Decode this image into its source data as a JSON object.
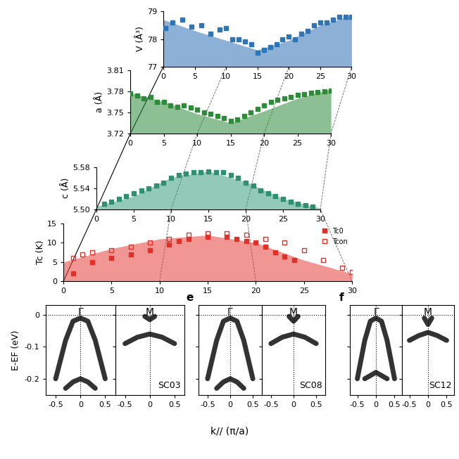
{
  "chart_data": [
    {
      "type": "scatter",
      "ylabel": "V (Å³)",
      "xlim": [
        0,
        30
      ],
      "xticks": [
        0,
        5,
        10,
        15,
        20,
        25,
        30
      ],
      "ylim": [
        77,
        79
      ],
      "yticks": [
        77,
        78,
        79
      ],
      "series": [
        {
          "type": "area",
          "color": "#2f6fb5",
          "x": [
            0,
            5,
            10,
            15,
            20,
            25,
            30
          ],
          "values": [
            78.7,
            78.3,
            77.95,
            77.6,
            77.95,
            78.5,
            78.85
          ]
        },
        {
          "type": "scatter",
          "color": "#2e75b6",
          "marker": "square",
          "x": [
            0.3,
            1.5,
            3,
            4.5,
            6,
            7.5,
            9,
            10,
            11,
            12,
            13,
            14,
            15,
            16,
            17,
            18,
            19,
            20,
            21,
            22,
            23,
            24,
            25,
            26,
            27,
            28,
            29,
            30
          ],
          "values": [
            78.4,
            78.6,
            78.7,
            78.45,
            78.5,
            78.2,
            78.35,
            78.4,
            78.0,
            78.0,
            77.9,
            77.8,
            77.5,
            77.6,
            77.7,
            77.8,
            78.0,
            78.1,
            78.0,
            78.2,
            78.3,
            78.5,
            78.6,
            78.6,
            78.7,
            78.8,
            78.8,
            78.8
          ]
        }
      ]
    },
    {
      "type": "scatter",
      "ylabel": "a (Å)",
      "xlim": [
        0,
        30
      ],
      "xticks": [
        0,
        5,
        10,
        15,
        20,
        25,
        30
      ],
      "ylim": [
        3.72,
        3.81
      ],
      "yticks": [
        3.72,
        3.75,
        3.78,
        3.81
      ],
      "series": [
        {
          "type": "area",
          "color": "#2e8b3a",
          "x": [
            0,
            5,
            10,
            15,
            20,
            25,
            30
          ],
          "values": [
            3.778,
            3.765,
            3.748,
            3.735,
            3.752,
            3.77,
            3.783
          ]
        },
        {
          "type": "scatter",
          "color": "#2e8b3a",
          "marker": "square",
          "x": [
            0,
            1,
            2,
            3,
            4,
            5,
            6,
            7,
            8,
            9,
            10,
            11,
            12,
            13,
            14,
            15,
            16,
            17,
            18,
            19,
            20,
            21,
            22,
            23,
            24,
            25,
            26,
            27,
            28,
            29,
            30
          ],
          "values": [
            3.777,
            3.774,
            3.77,
            3.772,
            3.765,
            3.765,
            3.76,
            3.758,
            3.76,
            3.757,
            3.754,
            3.75,
            3.748,
            3.745,
            3.742,
            3.738,
            3.74,
            3.745,
            3.75,
            3.755,
            3.76,
            3.765,
            3.768,
            3.77,
            3.772,
            3.775,
            3.776,
            3.778,
            3.779,
            3.78,
            3.781
          ]
        }
      ]
    },
    {
      "type": "scatter",
      "ylabel": "c (Å)",
      "xlim": [
        0,
        30
      ],
      "xticks": [
        0,
        5,
        10,
        15,
        20,
        25,
        30
      ],
      "ylim": [
        5.5,
        5.58
      ],
      "yticks": [
        {
          "value": 5.5,
          "label": "5.50"
        },
        5.54,
        5.58
      ],
      "series": [
        {
          "type": "area",
          "color": "#3a9e7e",
          "x": [
            0,
            5,
            10,
            15,
            20,
            25,
            30
          ],
          "values": [
            5.505,
            5.525,
            5.56,
            5.572,
            5.552,
            5.52,
            5.502
          ]
        },
        {
          "type": "scatter",
          "color": "#2f8f70",
          "marker": "square",
          "x": [
            1,
            2,
            3,
            4,
            5,
            6,
            7,
            8,
            9,
            10,
            11,
            12,
            13,
            14,
            15,
            16,
            17,
            18,
            19,
            20,
            21,
            22,
            23,
            24,
            25,
            26,
            27,
            28,
            29
          ],
          "values": [
            5.51,
            5.515,
            5.52,
            5.525,
            5.53,
            5.535,
            5.54,
            5.545,
            5.55,
            5.56,
            5.565,
            5.568,
            5.57,
            5.57,
            5.572,
            5.57,
            5.57,
            5.565,
            5.56,
            5.55,
            5.545,
            5.535,
            5.53,
            5.525,
            5.52,
            5.515,
            5.51,
            5.508,
            5.505
          ]
        }
      ]
    },
    {
      "type": "scatter",
      "ylabel": "Tc (K)",
      "xlim": [
        0,
        30
      ],
      "xticks": [
        0,
        5,
        10,
        15,
        20,
        25,
        30
      ],
      "ylim": [
        0,
        15
      ],
      "yticks": [
        0,
        5,
        10,
        15
      ],
      "legend": "upper right",
      "series": [
        {
          "type": "area",
          "color": "#e8403a",
          "x": [
            0,
            5,
            10,
            15,
            20,
            25,
            30
          ],
          "values": [
            5,
            8.5,
            11,
            12,
            10,
            5.5,
            2
          ]
        },
        {
          "type": "scatter",
          "name": "Tc0",
          "color": "#e0302a",
          "marker": "square",
          "x": [
            1,
            3,
            5,
            7,
            9,
            11,
            12,
            13,
            15,
            17,
            18,
            19,
            20,
            21,
            22,
            23,
            24
          ],
          "values": [
            2,
            5,
            6,
            7,
            8,
            9.5,
            10.5,
            11,
            11.5,
            11.5,
            11,
            10.5,
            10,
            9,
            7.5,
            6.5,
            5.5
          ]
        },
        {
          "type": "scatter",
          "name": "Tcon",
          "color": "#e0302a",
          "marker": "open-square",
          "x": [
            1,
            2,
            3,
            5,
            7,
            9,
            11,
            13,
            15,
            17,
            19,
            21,
            23,
            25,
            27,
            29,
            30
          ],
          "values": [
            6,
            7,
            7.5,
            8,
            9,
            10,
            11,
            12,
            12.5,
            12.5,
            12,
            11,
            10,
            8,
            5.5,
            3.5,
            2.5
          ]
        }
      ]
    },
    {
      "type": "arpes",
      "label": null,
      "sample": "SC03",
      "ylabel": "E-EF (eV)",
      "xlabel": "k// (π/a)",
      "xlim": [
        -0.7,
        0.7
      ],
      "xticks": [
        -0.5,
        0,
        0.5
      ],
      "ylim": [
        -0.25,
        0.03
      ],
      "yticks": [
        0,
        -0.1,
        -0.2
      ],
      "panels": [
        {
          "title": "Γ",
          "bands": [
            {
              "x": [
                -0.5,
                -0.3,
                -0.15,
                0,
                0.15,
                0.3,
                0.5
              ],
              "values": [
                -0.2,
                -0.08,
                -0.02,
                -0.01,
                -0.02,
                -0.08,
                -0.2
              ]
            },
            {
              "x": [
                -0.3,
                -0.15,
                0,
                0.15,
                0.3
              ],
              "values": [
                -0.23,
                -0.21,
                -0.2,
                -0.21,
                -0.23
              ]
            }
          ]
        },
        {
          "title": "M",
          "bands": [
            {
              "x": [
                -0.5,
                -0.25,
                0,
                0.25,
                0.5
              ],
              "values": [
                -0.09,
                -0.07,
                -0.06,
                -0.07,
                -0.09
              ]
            },
            {
              "x": [
                -0.1,
                0,
                0.1
              ],
              "values": [
                -0.005,
                -0.015,
                -0.005
              ]
            }
          ]
        }
      ]
    },
    {
      "type": "arpes",
      "label": "e",
      "sample": "SC08",
      "ylabel": null,
      "xlabel": null,
      "xlim": [
        -0.7,
        0.7
      ],
      "xticks": [
        -0.5,
        0,
        0.5
      ],
      "ylim": [
        -0.25,
        0.03
      ],
      "yticks": [
        0,
        -0.1,
        -0.2
      ],
      "panels": [
        {
          "title": "Γ",
          "bands": [
            {
              "x": [
                -0.5,
                -0.3,
                -0.15,
                0,
                0.15,
                0.3,
                0.5
              ],
              "values": [
                -0.2,
                -0.08,
                -0.02,
                -0.01,
                -0.02,
                -0.08,
                -0.2
              ]
            },
            {
              "x": [
                -0.3,
                -0.15,
                0,
                0.15,
                0.3
              ],
              "values": [
                -0.23,
                -0.21,
                -0.2,
                -0.21,
                -0.23
              ]
            }
          ]
        },
        {
          "title": "M",
          "bands": [
            {
              "x": [
                -0.5,
                -0.25,
                0,
                0.25,
                0.5
              ],
              "values": [
                -0.09,
                -0.07,
                -0.06,
                -0.07,
                -0.09
              ]
            },
            {
              "x": [
                -0.1,
                0,
                0.1
              ],
              "values": [
                -0.005,
                -0.02,
                -0.005
              ]
            }
          ]
        }
      ]
    },
    {
      "type": "arpes",
      "label": "f",
      "sample": "SC12",
      "ylabel": null,
      "xlabel": null,
      "xlim": [
        -0.7,
        0.7
      ],
      "xticks": [
        -0.5,
        0,
        0.5
      ],
      "ylim": [
        -0.25,
        0.03
      ],
      "yticks": [
        0,
        -0.1,
        -0.2
      ],
      "panels": [
        {
          "title": "Γ",
          "bands": [
            {
              "x": [
                -0.5,
                -0.3,
                -0.15,
                0,
                0.15,
                0.3,
                0.5
              ],
              "values": [
                -0.2,
                -0.08,
                -0.02,
                -0.01,
                -0.02,
                -0.08,
                -0.2
              ]
            },
            {
              "x": [
                -0.3,
                -0.15,
                0,
                0.15,
                0.3
              ],
              "values": [
                -0.2,
                -0.19,
                -0.18,
                -0.19,
                -0.2
              ]
            }
          ]
        },
        {
          "title": "M",
          "bands": [
            {
              "x": [
                -0.5,
                -0.25,
                0,
                0.25,
                0.5
              ],
              "values": [
                -0.08,
                -0.065,
                -0.055,
                -0.065,
                -0.08
              ]
            },
            {
              "x": [
                -0.1,
                0,
                0.1
              ],
              "values": [
                -0.01,
                -0.03,
                -0.01
              ]
            }
          ]
        }
      ]
    }
  ]
}
